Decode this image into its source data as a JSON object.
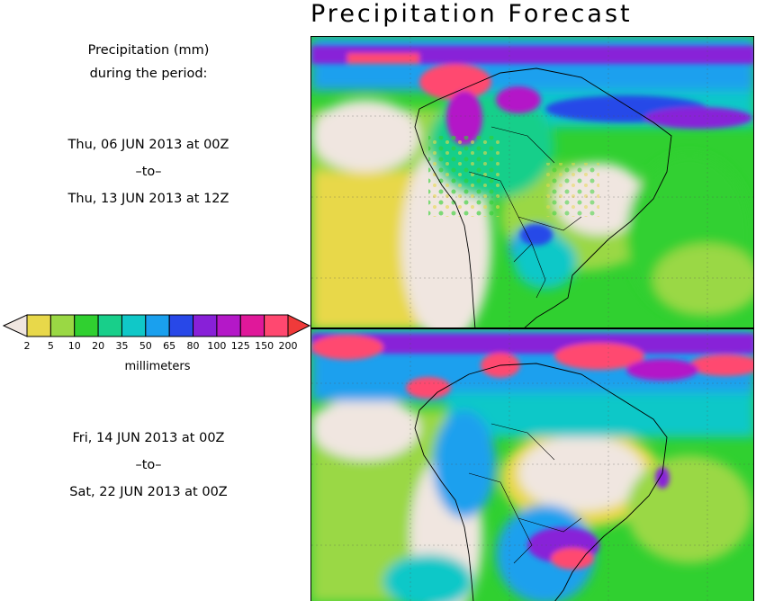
{
  "title": "Precipitation Forecast",
  "period_heading_line1": "Precipitation (mm)",
  "period_heading_line2": "during the period:",
  "periods": [
    {
      "start": "Thu, 06 JUN 2013 at 00Z",
      "separator": "–to–",
      "end": "Thu, 13 JUN 2013 at 12Z"
    },
    {
      "start": "Fri, 14 JUN 2013 at 00Z",
      "separator": "–to–",
      "end": "Sat, 22 JUN 2013 at 00Z"
    }
  ],
  "legend": {
    "unit": "millimeters",
    "labels": [
      "2",
      "5",
      "10",
      "20",
      "35",
      "50",
      "65",
      "80",
      "100",
      "125",
      "150",
      "200"
    ],
    "colors": [
      "#f0e6e0",
      "#e8d84a",
      "#9ad844",
      "#30d030",
      "#18cf8a",
      "#10c8c8",
      "#1aa0ee",
      "#2848e8",
      "#8820d8",
      "#b418c8",
      "#e0189a",
      "#ff4870",
      "#f03a3a"
    ]
  }
}
